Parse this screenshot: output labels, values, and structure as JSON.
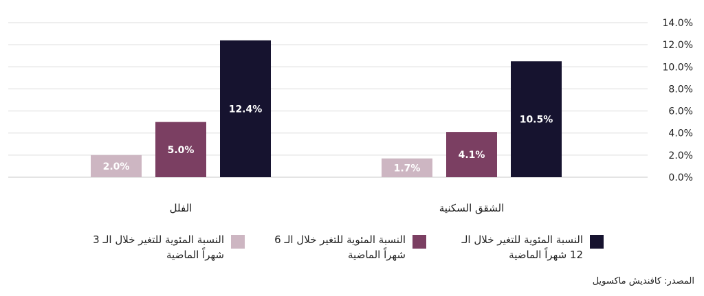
{
  "chart_data": {
    "type": "bar",
    "categories": [
      "الشقق السكنية",
      "الفلل"
    ],
    "series": [
      {
        "name": "النسبة المئوية للتغير خلال الـ 12 شهراً الماضية",
        "values": [
          10.5,
          12.4
        ],
        "labels": [
          "10.5%",
          "12.4%"
        ],
        "color": "#16132f"
      },
      {
        "name": "النسبة المئوية للتغير خلال الـ 6 شهراً الماضية",
        "values": [
          4.1,
          5.0
        ],
        "labels": [
          "4.1%",
          "5.0%"
        ],
        "color": "#7b3f62"
      },
      {
        "name": "النسبة المئوية للتغير خلال الـ 3 شهراً الماضية",
        "values": [
          1.7,
          2.0
        ],
        "labels": [
          "1.7%",
          "2.0%"
        ],
        "color": "#cdb6c2"
      }
    ],
    "yticks": [
      "0.0%",
      "2.0%",
      "4.0%",
      "6.0%",
      "8.0%",
      "10.0%",
      "12.0%",
      "14.0%"
    ],
    "ylim": [
      0,
      14
    ],
    "grid": true,
    "legend_position": "bottom",
    "source": "المصدر: كافنديش ماكسويل"
  }
}
